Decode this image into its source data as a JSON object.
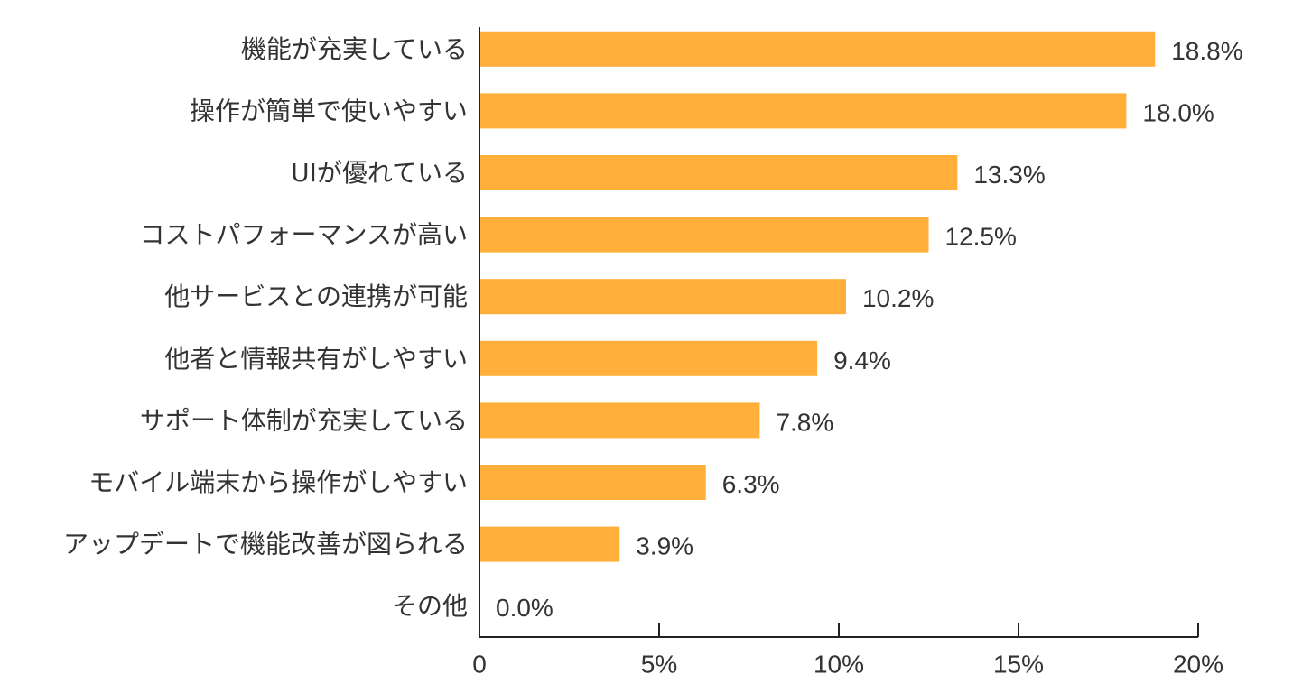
{
  "chart_data": {
    "type": "bar",
    "orientation": "horizontal",
    "categories": [
      "機能が充実している",
      "操作が簡単で使いやすい",
      "UIが優れている",
      "コストパフォーマンスが高い",
      "他サービスとの連携が可能",
      "他者と情報共有がしやすい",
      "サポート体制が充実している",
      "モバイル端末から操作がしやすい",
      "アップデートで機能改善が図られる",
      "その他"
    ],
    "values": [
      18.8,
      18.0,
      13.3,
      12.5,
      10.2,
      9.4,
      7.8,
      6.3,
      3.9,
      0.0
    ],
    "value_labels": [
      "18.8%",
      "18.0%",
      "13.3%",
      "12.5%",
      "10.2%",
      "9.4%",
      "7.8%",
      "6.3%",
      "3.9%",
      "0.0%"
    ],
    "xlim": [
      0,
      20
    ],
    "x_ticks": [
      0,
      5,
      10,
      15,
      20
    ],
    "x_tick_labels": [
      "0",
      "5%",
      "10%",
      "15%",
      "20%"
    ],
    "bar_color": "#FFAF3A",
    "grid": false,
    "legend": "none"
  }
}
